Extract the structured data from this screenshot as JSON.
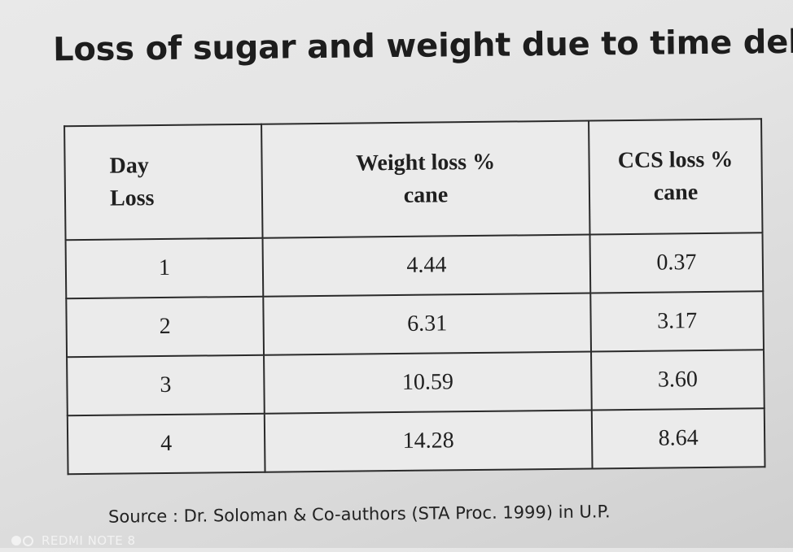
{
  "slide": {
    "title": "Loss of sugar and weight due to time delay",
    "table": {
      "headers": [
        {
          "lines": [
            "Day",
            "Loss"
          ]
        },
        {
          "lines": [
            "Weight loss %",
            "cane"
          ]
        },
        {
          "lines": [
            "CCS loss %",
            "cane"
          ]
        }
      ],
      "rows": [
        {
          "day": "1",
          "weight_loss": "4.44",
          "ccs_loss": "0.37"
        },
        {
          "day": "2",
          "weight_loss": "6.31",
          "ccs_loss": "3.17"
        },
        {
          "day": "3",
          "weight_loss": "10.59",
          "ccs_loss": "3.60"
        },
        {
          "day": "4",
          "weight_loss": "14.28",
          "ccs_loss": "8.64"
        }
      ]
    },
    "source": "Source : Dr. Soloman & Co-authors (STA Proc. 1999) in U.P."
  },
  "watermark": {
    "text": "REDMI NOTE 8",
    "icon": "camera-dots-icon"
  }
}
